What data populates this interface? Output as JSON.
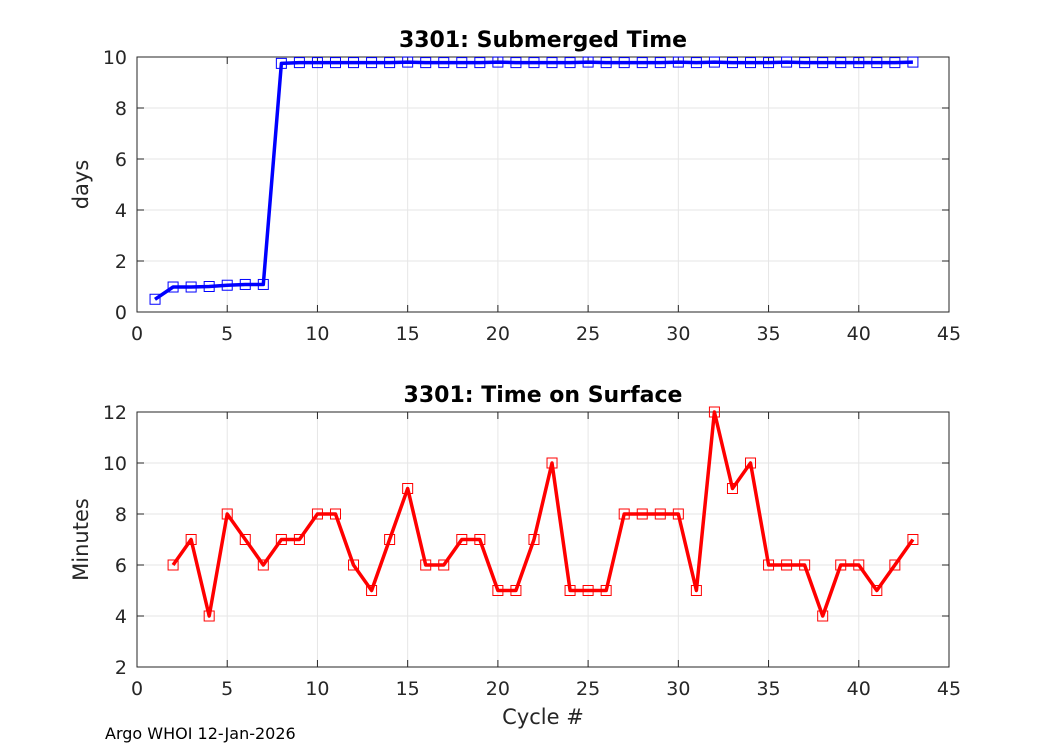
{
  "chart_data": [
    {
      "type": "line",
      "title": "3301: Submerged Time",
      "xlabel": "",
      "ylabel": "days",
      "xlim": [
        0,
        45
      ],
      "ylim": [
        0,
        10
      ],
      "xticks": [
        0,
        5,
        10,
        15,
        20,
        25,
        30,
        35,
        40,
        45
      ],
      "yticks": [
        0,
        2,
        4,
        6,
        8,
        10
      ],
      "grid": true,
      "series": [
        {
          "name": "Submerged Time",
          "color": "#0000ff",
          "marker": "square",
          "x": [
            1,
            2,
            3,
            4,
            5,
            6,
            7,
            8,
            9,
            10,
            11,
            12,
            13,
            14,
            15,
            16,
            17,
            18,
            19,
            20,
            21,
            22,
            23,
            24,
            25,
            26,
            27,
            28,
            29,
            30,
            31,
            32,
            33,
            34,
            35,
            36,
            37,
            38,
            39,
            40,
            41,
            42,
            43
          ],
          "values": [
            0.5,
            0.98,
            0.98,
            1.0,
            1.05,
            1.08,
            1.08,
            9.75,
            9.78,
            9.78,
            9.78,
            9.78,
            9.78,
            9.78,
            9.8,
            9.78,
            9.78,
            9.78,
            9.78,
            9.8,
            9.78,
            9.78,
            9.78,
            9.78,
            9.8,
            9.78,
            9.78,
            9.78,
            9.78,
            9.8,
            9.78,
            9.8,
            9.78,
            9.78,
            9.78,
            9.8,
            9.78,
            9.78,
            9.78,
            9.78,
            9.78,
            9.78,
            9.8
          ]
        }
      ]
    },
    {
      "type": "line",
      "title": "3301: Time on Surface",
      "xlabel": "Cycle #",
      "ylabel": "Minutes",
      "xlim": [
        0,
        45
      ],
      "ylim": [
        2,
        12
      ],
      "xticks": [
        0,
        5,
        10,
        15,
        20,
        25,
        30,
        35,
        40,
        45
      ],
      "yticks": [
        2,
        4,
        6,
        8,
        10,
        12
      ],
      "grid": true,
      "series": [
        {
          "name": "Time on Surface",
          "color": "#ff0000",
          "marker": "square",
          "x": [
            2,
            3,
            4,
            5,
            6,
            7,
            8,
            9,
            10,
            11,
            12,
            13,
            14,
            15,
            16,
            17,
            18,
            19,
            20,
            21,
            22,
            23,
            24,
            25,
            26,
            27,
            28,
            29,
            30,
            31,
            32,
            33,
            34,
            35,
            36,
            37,
            38,
            39,
            40,
            41,
            42,
            43
          ],
          "values": [
            6,
            7,
            4,
            8,
            7,
            6,
            7,
            7,
            8,
            8,
            6,
            5,
            7,
            9,
            6,
            6,
            7,
            7,
            5,
            5,
            7,
            10,
            5,
            5,
            5,
            8,
            8,
            8,
            8,
            5,
            12,
            9,
            10,
            6,
            6,
            6,
            4,
            6,
            6,
            5,
            6,
            7
          ]
        }
      ]
    }
  ],
  "footer": "Argo WHOI 12-Jan-2026"
}
